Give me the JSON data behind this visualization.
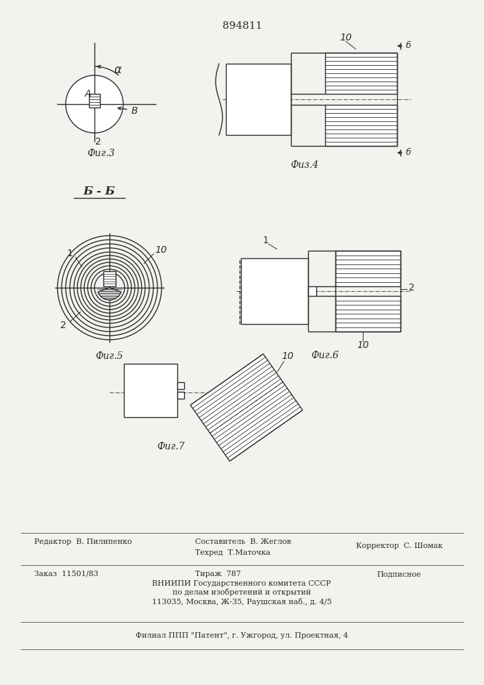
{
  "patent_number": "894811",
  "background_color": "#f2f2ee",
  "line_color": "#2a2a2a",
  "fig3_caption": "Фиг.3",
  "fig4_caption": "Физ.4",
  "fig5_caption": "Фиг.5",
  "fig6_caption": "Фиг.6",
  "fig7_caption": "Фиг.7",
  "section_label": "Б - Б",
  "bottom_line1": "Редактор  В. Пилипенко",
  "bottom_line2": "Составитель  В. Жеглов",
  "bottom_line3": "Техред  Т.Маточка",
  "bottom_line4": "Корректор  С. Шомак",
  "bottom_line5": "Заказ  11501/83",
  "bottom_line6": "Тираж  787",
  "bottom_line7": "Подписное",
  "bottom_line8": "ВНИИПИ Государственного комитета СССР",
  "bottom_line9": "по делам изобретений и открытий",
  "bottom_line10": "113035, Москва, Ж-35, Раушская наб., д. 4/5",
  "bottom_line11": "Филиал ППП \"Патент\", г. Ужгород, ул. Проектная, 4"
}
